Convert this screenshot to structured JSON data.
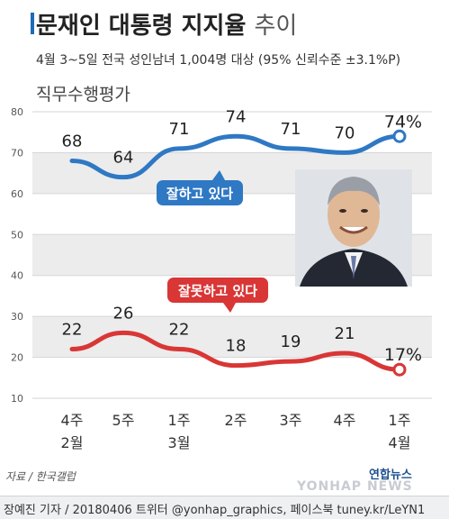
{
  "header": {
    "title": "문재인 대통령 지지율",
    "title_suffix": "추이",
    "subtitle": "4월 3~5일 전국 성인남녀 1,004명 대상 (95% 신뢰수준 ±3.1%P)",
    "metric": "직무수행평가"
  },
  "footer": {
    "source": "자료 / 한국갤럽",
    "credit": "장예진 기자 / 20180406 트위터 @yonhap_graphics, 페이스북 tuney.kr/LeYN1",
    "logo": "연합뉴스",
    "watermark": "YONHAP NEWS"
  },
  "chart_data": {
    "type": "line",
    "categories": [
      {
        "week": "4주",
        "month": "2월"
      },
      {
        "week": "5주",
        "month": ""
      },
      {
        "week": "1주",
        "month": "3월"
      },
      {
        "week": "2주",
        "month": ""
      },
      {
        "week": "3주",
        "month": ""
      },
      {
        "week": "4주",
        "month": ""
      },
      {
        "week": "1주",
        "month": "4월"
      }
    ],
    "series": [
      {
        "name": "잘하고 있다",
        "values": [
          68,
          64,
          71,
          74,
          71,
          70,
          74
        ],
        "color": "#2f78c4",
        "labels": [
          "68",
          "64",
          "71",
          "74",
          "71",
          "70",
          "74%"
        ]
      },
      {
        "name": "잘못하고 있다",
        "values": [
          22,
          26,
          22,
          18,
          19,
          21,
          17
        ],
        "color": "#d93636",
        "labels": [
          "22",
          "26",
          "22",
          "18",
          "19",
          "21",
          "17%"
        ]
      }
    ],
    "yticks": [
      10,
      20,
      30,
      40,
      50,
      60,
      70,
      80
    ],
    "ylim": [
      10,
      80
    ],
    "grid": true
  }
}
